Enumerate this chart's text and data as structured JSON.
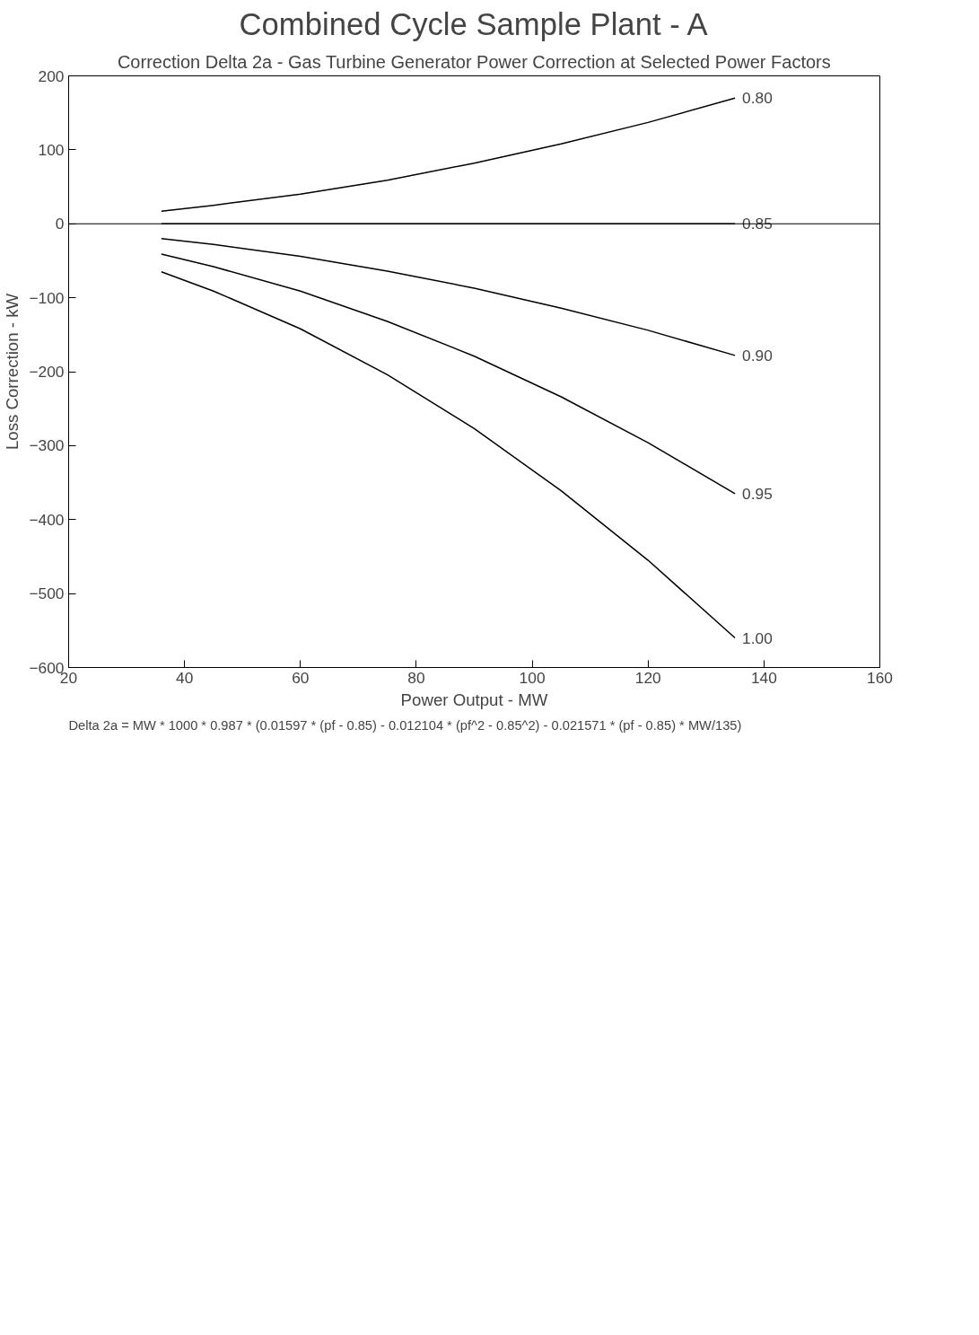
{
  "chart_data": {
    "type": "line",
    "title": "Combined Cycle Sample Plant - A",
    "subtitle": "Correction Delta 2a - Gas Turbine Generator Power Correction at Selected Power Factors",
    "xlabel": "Power Output - MW",
    "ylabel": "Loss Correction - kW",
    "x": [
      36,
      45,
      60,
      75,
      90,
      105,
      120,
      135
    ],
    "series": [
      {
        "name": "0.80",
        "color": "#000000",
        "values": [
          17,
          25,
          40,
          59,
          82,
          108,
          137,
          170
        ]
      },
      {
        "name": "0.85",
        "color": "#000000",
        "values": [
          0,
          0,
          0,
          0,
          0,
          0,
          0,
          0
        ]
      },
      {
        "name": "0.90",
        "color": "#000000",
        "values": [
          -20,
          -28,
          -44,
          -64,
          -87,
          -114,
          -144,
          -178
        ]
      },
      {
        "name": "0.95",
        "color": "#000000",
        "values": [
          -41,
          -58,
          -91,
          -132,
          -179,
          -234,
          -296,
          -365
        ]
      },
      {
        "name": "1.00",
        "color": "#000000",
        "values": [
          -65,
          -91,
          -142,
          -204,
          -277,
          -361,
          -455,
          -560
        ]
      }
    ],
    "ref_lines": [
      {
        "axis": "y",
        "value": 0,
        "color": "#000000"
      }
    ],
    "xlim": [
      20,
      160
    ],
    "xticks": [
      20,
      40,
      60,
      80,
      100,
      120,
      140,
      160
    ],
    "ylim": [
      -600,
      200
    ],
    "yticks": [
      -600,
      -500,
      -400,
      -300,
      -200,
      -100,
      0,
      100,
      200
    ],
    "annotations": [
      "Delta 2a = MW * 1000 * 0.987 * (0.01597 * (pf - 0.85) - 0.012104 * (pf^2 - 0.85^2) - 0.021571 * (pf - 0.85) * MW/135)"
    ]
  }
}
